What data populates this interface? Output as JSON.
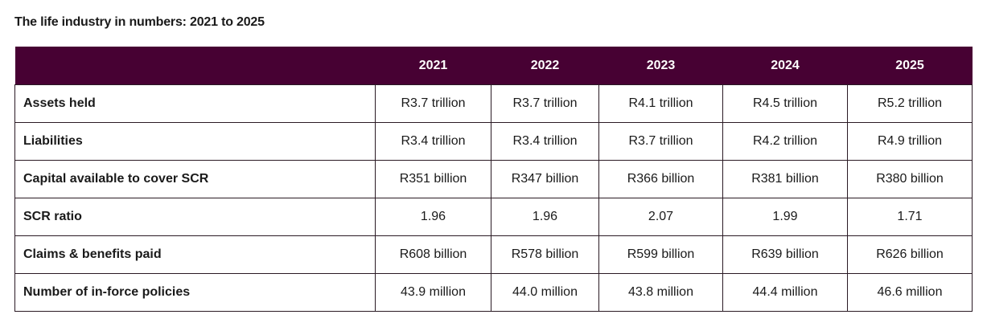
{
  "title": "The life industry in numbers: 2021 to 2025",
  "header_color": "#470133",
  "columns": [
    "",
    "2021",
    "2022",
    "2023",
    "2024",
    "2025"
  ],
  "rows": [
    {
      "label": "Assets held",
      "values": [
        "R3.7 trillion",
        "R3.7 trillion",
        "R4.1 trillion",
        "R4.5 trillion",
        "R5.2 trillion"
      ]
    },
    {
      "label": "Liabilities",
      "values": [
        "R3.4 trillion",
        "R3.4 trillion",
        "R3.7 trillion",
        "R4.2 trillion",
        "R4.9 trillion"
      ]
    },
    {
      "label": "Capital available to cover SCR",
      "values": [
        "R351 billion",
        "R347 billion",
        "R366 billion",
        "R381 billion",
        "R380 billion"
      ]
    },
    {
      "label": "SCR ratio",
      "values": [
        "1.96",
        "1.96",
        "2.07",
        "1.99",
        "1.71"
      ]
    },
    {
      "label": "Claims & benefits paid",
      "values": [
        "R608 billion",
        "R578 billion",
        "R599 billion",
        "R639 billion",
        "R626 billion"
      ]
    },
    {
      "label": "Number of in-force policies",
      "values": [
        "43.9 million",
        "44.0 million",
        "43.8 million",
        "44.4 million",
        "46.6 million"
      ]
    }
  ]
}
